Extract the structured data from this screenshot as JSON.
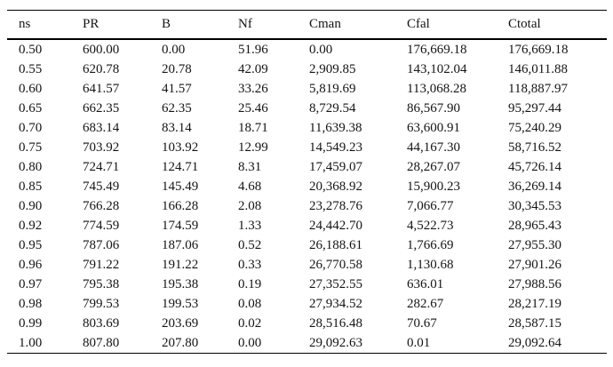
{
  "table": {
    "columns": [
      "ns",
      "PR",
      "B",
      "Nf",
      "Cman",
      "Cfal",
      "Ctotal"
    ],
    "rows": [
      [
        "0.50",
        "600.00",
        "0.00",
        "51.96",
        "0.00",
        "176,669.18",
        "176,669.18"
      ],
      [
        "0.55",
        "620.78",
        "20.78",
        "42.09",
        "2,909.85",
        "143,102.04",
        "146,011.88"
      ],
      [
        "0.60",
        "641.57",
        "41.57",
        "33.26",
        "5,819.69",
        "113,068.28",
        "118,887.97"
      ],
      [
        "0.65",
        "662.35",
        "62.35",
        "25.46",
        "8,729.54",
        "86,567.90",
        "95,297.44"
      ],
      [
        "0.70",
        "683.14",
        "83.14",
        "18.71",
        "11,639.38",
        "63,600.91",
        "75,240.29"
      ],
      [
        "0.75",
        "703.92",
        "103.92",
        "12.99",
        "14,549.23",
        "44,167.30",
        "58,716.52"
      ],
      [
        "0.80",
        "724.71",
        "124.71",
        "8.31",
        "17,459.07",
        "28,267.07",
        "45,726.14"
      ],
      [
        "0.85",
        "745.49",
        "145.49",
        "4.68",
        "20,368.92",
        "15,900.23",
        "36,269.14"
      ],
      [
        "0.90",
        "766.28",
        "166.28",
        "2.08",
        "23,278.76",
        "7,066.77",
        "30,345.53"
      ],
      [
        "0.92",
        "774.59",
        "174.59",
        "1.33",
        "24,442.70",
        "4,522.73",
        "28,965.43"
      ],
      [
        "0.95",
        "787.06",
        "187.06",
        "0.52",
        "26,188.61",
        "1,766.69",
        "27,955.30"
      ],
      [
        "0.96",
        "791.22",
        "191.22",
        "0.33",
        "26,770.58",
        "1,130.68",
        "27,901.26"
      ],
      [
        "0.97",
        "795.38",
        "195.38",
        "0.19",
        "27,352.55",
        "636.01",
        "27,988.56"
      ],
      [
        "0.98",
        "799.53",
        "199.53",
        "0.08",
        "27,934.52",
        "282.67",
        "28,217.19"
      ],
      [
        "0.99",
        "803.69",
        "203.69",
        "0.02",
        "28,516.48",
        "70.67",
        "28,587.15"
      ],
      [
        "1.00",
        "807.80",
        "207.80",
        "0.00",
        "29,092.63",
        "0.01",
        "29,092.64"
      ]
    ]
  },
  "colors": {
    "background": "#ffffff",
    "text": "#141414",
    "rule": "#000000"
  }
}
